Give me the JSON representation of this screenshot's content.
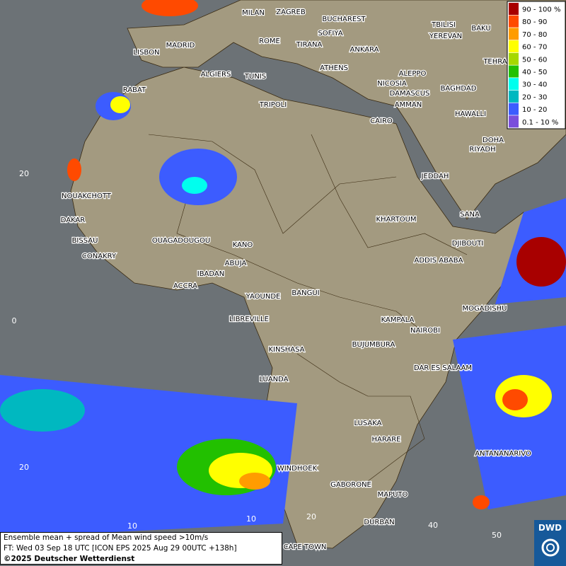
{
  "legend": {
    "items": [
      {
        "label": "90 - 100 %",
        "color": "#a80000"
      },
      {
        "label": "80 - 90",
        "color": "#ff4a00"
      },
      {
        "label": "70 - 80",
        "color": "#ff9c00"
      },
      {
        "label": "60 - 70",
        "color": "#ffff00"
      },
      {
        "label": "50 - 60",
        "color": "#a6d800"
      },
      {
        "label": "40 - 50",
        "color": "#22c000"
      },
      {
        "label": "30 - 40",
        "color": "#00ffee"
      },
      {
        "label": "20 - 30",
        "color": "#00b8c0"
      },
      {
        "label": "10 - 20",
        "color": "#3c5cff"
      },
      {
        "label": "0.1 - 10 %",
        "color": "#7a4edc"
      }
    ]
  },
  "cities": [
    "MILAN",
    "ZAGREB",
    "BUCHAREST",
    "SOFIYA",
    "TBILISI",
    "BAKU",
    "YEREVAN",
    "MADRID",
    "ROME",
    "TIRANA",
    "ANKARA",
    "LISBON",
    "TEHRA",
    "ATHENS",
    "ALGIERS",
    "TUNIS",
    "ALEPPO",
    "RABAT",
    "NICOSIA",
    "BAGHDAD",
    "TRIPOLI",
    "DAMASCUS",
    "AMMAN",
    "HAWALLI",
    "CAIRO",
    "DOHA",
    "RIYADH",
    "JEDDAH",
    "NOUAKCHOTT",
    "SANA",
    "KHARTOUM",
    "DAKAR",
    "BISSAU",
    "DJIBOUTI",
    "OUAGADOUGOU",
    "KANO",
    "CONAKRY",
    "ABUJA",
    "ADDIS ABABA",
    "IBADAN",
    "ACCRA",
    "YAOUNDE",
    "BANGUI",
    "MOGADISHU",
    "LIBREVILLE",
    "KAMPALA",
    "NAIROBI",
    "KINSHASA",
    "BUJUMBURA",
    "DAR ES SALAAM",
    "LUANDA",
    "LUSAKA",
    "HARARE",
    "ANTANANARIVO",
    "WINDHOEK",
    "GABORONE",
    "MAPUTO",
    "DURBAN",
    "CAPE TOWN"
  ],
  "grid_labels": [
    "20",
    "0",
    "20",
    "10",
    "10",
    "20",
    "40",
    "50"
  ],
  "caption": {
    "lines": [
      "Ensemble mean + spread of Mean wind speed >10m/s",
      "FT: Wed 03 Sep 18 UTC [ICON EPS 2025 Aug 29 00UTC +138h]",
      "©2025 Deutscher Wetterdienst"
    ]
  },
  "logo": "DWD"
}
